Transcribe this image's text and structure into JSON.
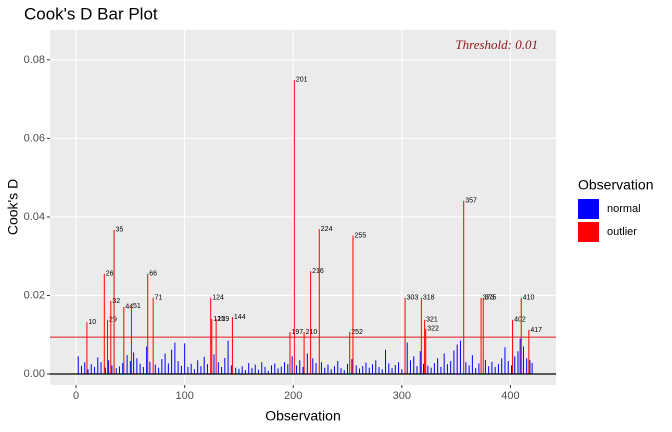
{
  "chart_data": {
    "type": "bar",
    "title": "Cook's D Bar Plot",
    "x_label": "Observation",
    "y_label": "Cook's D",
    "legend_title": "Observation",
    "legend_position": "right",
    "grid": true,
    "xlim": [
      -24,
      442
    ],
    "ylim": [
      -0.0028,
      0.0876
    ],
    "xticks": [
      0,
      100,
      200,
      300,
      400
    ],
    "yticks": [
      {
        "value": 0,
        "label": "0.00"
      },
      {
        "value": 0.02,
        "label": "0.02"
      },
      {
        "value": 0.04,
        "label": "0.04"
      },
      {
        "value": 0.06,
        "label": "0.06"
      },
      {
        "value": 0.08,
        "label": "0.08"
      }
    ],
    "threshold": {
      "value": 0.0094,
      "label": "Threshold: 0.01",
      "color": "#e41a1c"
    },
    "series": [
      {
        "name": "normal",
        "color": "#0000ff",
        "x": [
          2,
          5,
          8,
          11,
          14,
          17,
          20,
          23,
          27,
          30,
          33,
          37,
          40,
          43,
          47,
          50,
          53,
          56,
          59,
          62,
          65,
          68,
          73,
          76,
          79,
          82,
          85,
          88,
          91,
          94,
          97,
          100,
          103,
          106,
          109,
          112,
          115,
          118,
          121,
          127,
          131,
          134,
          137,
          140,
          143,
          147,
          150,
          153,
          156,
          159,
          162,
          165,
          168,
          171,
          174,
          177,
          180,
          183,
          186,
          189,
          192,
          195,
          199,
          203,
          206,
          209,
          213,
          218,
          221,
          226,
          229,
          232,
          235,
          238,
          241,
          244,
          247,
          250,
          254,
          258,
          261,
          264,
          267,
          270,
          273,
          276,
          279,
          282,
          285,
          288,
          291,
          294,
          297,
          300,
          305,
          308,
          311,
          314,
          317,
          320,
          324,
          327,
          330,
          333,
          336,
          339,
          342,
          345,
          348,
          351,
          354,
          359,
          362,
          365,
          368,
          371,
          377,
          380,
          383,
          386,
          389,
          392,
          395,
          398,
          401,
          404,
          407,
          409,
          412,
          415,
          418,
          420
        ],
        "values": [
          0.0045,
          0.0021,
          0.003,
          0.0012,
          0.0025,
          0.0018,
          0.0042,
          0.003,
          0.0016,
          0.0035,
          0.0022,
          0.0015,
          0.0019,
          0.0028,
          0.0048,
          0.0033,
          0.0055,
          0.004,
          0.0026,
          0.0018,
          0.007,
          0.0031,
          0.0024,
          0.0016,
          0.0038,
          0.0052,
          0.0027,
          0.0062,
          0.008,
          0.0033,
          0.0021,
          0.0078,
          0.0018,
          0.0026,
          0.0012,
          0.0035,
          0.002,
          0.0044,
          0.0025,
          0.005,
          0.003,
          0.0018,
          0.0041,
          0.0085,
          0.0022,
          0.0016,
          0.0013,
          0.002,
          0.001,
          0.0028,
          0.0015,
          0.0024,
          0.0011,
          0.003,
          0.0018,
          0.0008,
          0.0022,
          0.0027,
          0.0014,
          0.0019,
          0.003,
          0.0025,
          0.0045,
          0.0022,
          0.0035,
          0.0018,
          0.0052,
          0.004,
          0.0028,
          0.003,
          0.0016,
          0.0024,
          0.0012,
          0.002,
          0.0033,
          0.0015,
          0.001,
          0.0026,
          0.0038,
          0.0022,
          0.0014,
          0.002,
          0.0029,
          0.0016,
          0.0025,
          0.0035,
          0.0018,
          0.0012,
          0.0062,
          0.0027,
          0.0015,
          0.0023,
          0.003,
          0.0012,
          0.008,
          0.0035,
          0.0045,
          0.002,
          0.0058,
          0.0026,
          0.0021,
          0.0016,
          0.0028,
          0.004,
          0.0018,
          0.0052,
          0.0025,
          0.0033,
          0.006,
          0.0075,
          0.0085,
          0.003,
          0.0022,
          0.0048,
          0.0015,
          0.0027,
          0.0036,
          0.002,
          0.0031,
          0.0018,
          0.0025,
          0.004,
          0.0068,
          0.0033,
          0.0022,
          0.0045,
          0.0058,
          0.009,
          0.007,
          0.004,
          0.0035,
          0.0028
        ]
      },
      {
        "name": "outlier",
        "color": "#ff0000",
        "x": [
          10,
          26,
          29,
          32,
          35,
          44,
          51,
          66,
          71,
          124,
          125,
          129,
          144,
          197,
          201,
          210,
          216,
          224,
          252,
          255,
          303,
          318,
          321,
          322,
          357,
          373,
          375,
          402,
          410,
          417
        ],
        "labels": [
          "10",
          "26",
          "29",
          "32",
          "35",
          "44",
          "51",
          "66",
          "71",
          "124",
          "125",
          "129",
          "144",
          "197",
          "201",
          "210",
          "216",
          "224",
          "252",
          "255",
          "303",
          "318",
          "321",
          "322",
          "357",
          "373",
          "375",
          "402",
          "410",
          "417"
        ],
        "values": [
          0.0132,
          0.0255,
          0.0138,
          0.0186,
          0.0367,
          0.0171,
          0.0173,
          0.0255,
          0.0194,
          0.0194,
          0.014,
          0.014,
          0.0145,
          0.0107,
          0.0749,
          0.0107,
          0.0262,
          0.0369,
          0.0107,
          0.0352,
          0.0194,
          0.0194,
          0.0138,
          0.0115,
          0.0441,
          0.0194,
          0.0194,
          0.0138,
          0.0194,
          0.0112
        ]
      }
    ]
  }
}
